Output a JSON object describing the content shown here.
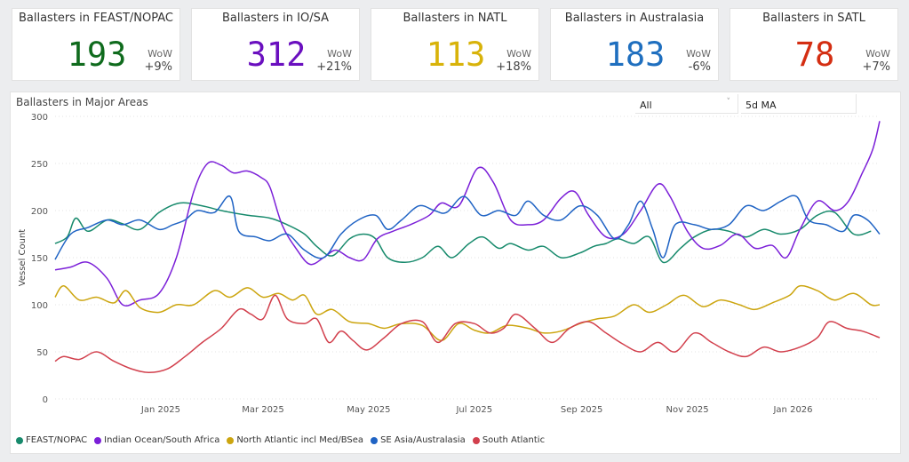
{
  "kpis": [
    {
      "title": "Ballasters in FEAST/NOPAC",
      "value": "193",
      "wow_label": "WoW",
      "wow": "+9%",
      "color": "#0f6b1d"
    },
    {
      "title": "Ballasters in IO/SA",
      "value": "312",
      "wow_label": "WoW",
      "wow": "+21%",
      "color": "#6a0fbf"
    },
    {
      "title": "Ballasters in NATL",
      "value": "113",
      "wow_label": "WoW",
      "wow": "+18%",
      "color": "#d8b30a"
    },
    {
      "title": "Ballasters in Australasia",
      "value": "183",
      "wow_label": "WoW",
      "wow": "-6%",
      "color": "#1f6fbf"
    },
    {
      "title": "Ballasters in SATL",
      "value": "78",
      "wow_label": "WoW",
      "wow": "+7%",
      "color": "#d42e12"
    }
  ],
  "filters": {
    "range": "All",
    "ma": "5d MA",
    "range_icon": "dropdown-icon",
    "ma_icon": "dropdown-icon"
  },
  "chart_data": {
    "type": "line",
    "title": "Ballasters in Major Areas",
    "xlabel": "",
    "ylabel": "Vessel Count",
    "ylim": [
      0,
      300
    ],
    "yticks": [
      0,
      50,
      100,
      150,
      200,
      250,
      300
    ],
    "x_range": [
      "2024-11-01",
      "2026-02-20"
    ],
    "x_ticks": [
      {
        "date": "2025-01-01",
        "label": "Jan 2025"
      },
      {
        "date": "2025-03-01",
        "label": "Mar 2025"
      },
      {
        "date": "2025-05-01",
        "label": "May 2025"
      },
      {
        "date": "2025-07-01",
        "label": "Jul 2025"
      },
      {
        "date": "2025-09-01",
        "label": "Sep 2025"
      },
      {
        "date": "2025-11-01",
        "label": "Nov 2025"
      },
      {
        "date": "2026-01-01",
        "label": "Jan 2026"
      }
    ],
    "grid": true,
    "legend_position": "bottom-left",
    "series": [
      {
        "name": "FEAST/NOPAC",
        "color": "#178a6c",
        "points": [
          [
            "2024-11-01",
            165
          ],
          [
            "2024-11-08",
            172
          ],
          [
            "2024-11-13",
            192
          ],
          [
            "2024-11-20",
            178
          ],
          [
            "2024-12-01",
            190
          ],
          [
            "2024-12-10",
            186
          ],
          [
            "2024-12-20",
            180
          ],
          [
            "2024-12-31",
            198
          ],
          [
            "2025-01-12",
            208
          ],
          [
            "2025-01-25",
            205
          ],
          [
            "2025-02-05",
            200
          ],
          [
            "2025-02-20",
            195
          ],
          [
            "2025-03-05",
            192
          ],
          [
            "2025-03-15",
            185
          ],
          [
            "2025-03-25",
            175
          ],
          [
            "2025-04-01",
            162
          ],
          [
            "2025-04-10",
            152
          ],
          [
            "2025-04-20",
            170
          ],
          [
            "2025-04-28",
            175
          ],
          [
            "2025-05-05",
            170
          ],
          [
            "2025-05-12",
            150
          ],
          [
            "2025-05-22",
            145
          ],
          [
            "2025-06-01",
            150
          ],
          [
            "2025-06-10",
            162
          ],
          [
            "2025-06-18",
            150
          ],
          [
            "2025-06-28",
            165
          ],
          [
            "2025-07-06",
            172
          ],
          [
            "2025-07-15",
            160
          ],
          [
            "2025-07-22",
            165
          ],
          [
            "2025-08-01",
            158
          ],
          [
            "2025-08-10",
            162
          ],
          [
            "2025-08-20",
            150
          ],
          [
            "2025-08-31",
            155
          ],
          [
            "2025-09-08",
            162
          ],
          [
            "2025-09-15",
            165
          ],
          [
            "2025-09-22",
            170
          ],
          [
            "2025-10-01",
            165
          ],
          [
            "2025-10-10",
            172
          ],
          [
            "2025-10-18",
            145
          ],
          [
            "2025-10-28",
            160
          ],
          [
            "2025-11-05",
            172
          ],
          [
            "2025-11-15",
            180
          ],
          [
            "2025-11-25",
            178
          ],
          [
            "2025-12-05",
            172
          ],
          [
            "2025-12-15",
            180
          ],
          [
            "2025-12-25",
            175
          ],
          [
            "2026-01-05",
            180
          ],
          [
            "2026-01-15",
            195
          ],
          [
            "2026-01-25",
            198
          ],
          [
            "2026-02-05",
            175
          ],
          [
            "2026-02-15",
            178
          ]
        ]
      },
      {
        "name": "Indian Ocean/South Africa",
        "color": "#7b1fd8",
        "points": [
          [
            "2024-11-01",
            137
          ],
          [
            "2024-11-10",
            140
          ],
          [
            "2024-11-20",
            145
          ],
          [
            "2024-12-01",
            128
          ],
          [
            "2024-12-10",
            100
          ],
          [
            "2024-12-20",
            105
          ],
          [
            "2024-12-31",
            112
          ],
          [
            "2025-01-10",
            150
          ],
          [
            "2025-01-20",
            220
          ],
          [
            "2025-01-28",
            250
          ],
          [
            "2025-02-05",
            248
          ],
          [
            "2025-02-12",
            240
          ],
          [
            "2025-02-20",
            242
          ],
          [
            "2025-02-28",
            235
          ],
          [
            "2025-03-05",
            225
          ],
          [
            "2025-03-12",
            185
          ],
          [
            "2025-03-20",
            160
          ],
          [
            "2025-03-28",
            143
          ],
          [
            "2025-04-05",
            150
          ],
          [
            "2025-04-12",
            158
          ],
          [
            "2025-04-20",
            150
          ],
          [
            "2025-04-28",
            148
          ],
          [
            "2025-05-06",
            170
          ],
          [
            "2025-05-15",
            178
          ],
          [
            "2025-05-25",
            185
          ],
          [
            "2025-06-05",
            195
          ],
          [
            "2025-06-12",
            208
          ],
          [
            "2025-06-22",
            205
          ],
          [
            "2025-07-03",
            245
          ],
          [
            "2025-07-12",
            230
          ],
          [
            "2025-07-22",
            190
          ],
          [
            "2025-08-01",
            185
          ],
          [
            "2025-08-10",
            190
          ],
          [
            "2025-08-20",
            213
          ],
          [
            "2025-08-28",
            220
          ],
          [
            "2025-09-05",
            195
          ],
          [
            "2025-09-15",
            172
          ],
          [
            "2025-09-25",
            175
          ],
          [
            "2025-10-05",
            200
          ],
          [
            "2025-10-15",
            228
          ],
          [
            "2025-10-22",
            215
          ],
          [
            "2025-11-01",
            178
          ],
          [
            "2025-11-10",
            160
          ],
          [
            "2025-11-20",
            163
          ],
          [
            "2025-11-30",
            175
          ],
          [
            "2025-12-10",
            160
          ],
          [
            "2025-12-20",
            163
          ],
          [
            "2025-12-28",
            150
          ],
          [
            "2026-01-05",
            180
          ],
          [
            "2026-01-15",
            210
          ],
          [
            "2026-01-25",
            200
          ],
          [
            "2026-02-02",
            210
          ],
          [
            "2026-02-10",
            240
          ],
          [
            "2026-02-16",
            265
          ],
          [
            "2026-02-20",
            295
          ]
        ]
      },
      {
        "name": "North Atlantic incl Med/BSea",
        "color": "#cca50f",
        "points": [
          [
            "2024-11-01",
            108
          ],
          [
            "2024-11-06",
            120
          ],
          [
            "2024-11-15",
            105
          ],
          [
            "2024-11-25",
            108
          ],
          [
            "2024-12-05",
            102
          ],
          [
            "2024-12-12",
            115
          ],
          [
            "2024-12-20",
            97
          ],
          [
            "2024-12-31",
            92
          ],
          [
            "2025-01-10",
            100
          ],
          [
            "2025-01-20",
            100
          ],
          [
            "2025-02-01",
            115
          ],
          [
            "2025-02-10",
            108
          ],
          [
            "2025-02-20",
            118
          ],
          [
            "2025-03-01",
            108
          ],
          [
            "2025-03-10",
            112
          ],
          [
            "2025-03-18",
            105
          ],
          [
            "2025-03-25",
            110
          ],
          [
            "2025-04-01",
            90
          ],
          [
            "2025-04-10",
            95
          ],
          [
            "2025-04-20",
            82
          ],
          [
            "2025-05-01",
            80
          ],
          [
            "2025-05-10",
            75
          ],
          [
            "2025-05-20",
            80
          ],
          [
            "2025-06-01",
            78
          ],
          [
            "2025-06-12",
            62
          ],
          [
            "2025-06-22",
            80
          ],
          [
            "2025-07-01",
            73
          ],
          [
            "2025-07-10",
            70
          ],
          [
            "2025-07-20",
            78
          ],
          [
            "2025-08-01",
            75
          ],
          [
            "2025-08-10",
            70
          ],
          [
            "2025-08-20",
            72
          ],
          [
            "2025-08-31",
            80
          ],
          [
            "2025-09-10",
            85
          ],
          [
            "2025-09-20",
            88
          ],
          [
            "2025-10-01",
            100
          ],
          [
            "2025-10-10",
            92
          ],
          [
            "2025-10-20",
            100
          ],
          [
            "2025-10-30",
            110
          ],
          [
            "2025-11-10",
            98
          ],
          [
            "2025-11-20",
            105
          ],
          [
            "2025-12-01",
            100
          ],
          [
            "2025-12-10",
            95
          ],
          [
            "2025-12-20",
            102
          ],
          [
            "2025-12-30",
            110
          ],
          [
            "2026-01-05",
            120
          ],
          [
            "2026-01-15",
            115
          ],
          [
            "2026-01-25",
            105
          ],
          [
            "2026-02-05",
            112
          ],
          [
            "2026-02-15",
            100
          ],
          [
            "2026-02-20",
            100
          ]
        ]
      },
      {
        "name": "SE Asia/Australasia",
        "color": "#1f63c4",
        "points": [
          [
            "2024-11-01",
            148
          ],
          [
            "2024-11-10",
            175
          ],
          [
            "2024-11-20",
            182
          ],
          [
            "2024-12-01",
            190
          ],
          [
            "2024-12-10",
            185
          ],
          [
            "2024-12-20",
            190
          ],
          [
            "2024-12-31",
            180
          ],
          [
            "2025-01-08",
            185
          ],
          [
            "2025-01-15",
            190
          ],
          [
            "2025-01-22",
            200
          ],
          [
            "2025-02-01",
            198
          ],
          [
            "2025-02-10",
            215
          ],
          [
            "2025-02-15",
            178
          ],
          [
            "2025-02-25",
            172
          ],
          [
            "2025-03-05",
            168
          ],
          [
            "2025-03-15",
            175
          ],
          [
            "2025-03-25",
            158
          ],
          [
            "2025-04-05",
            150
          ],
          [
            "2025-04-15",
            175
          ],
          [
            "2025-04-25",
            190
          ],
          [
            "2025-05-05",
            195
          ],
          [
            "2025-05-12",
            180
          ],
          [
            "2025-05-20",
            190
          ],
          [
            "2025-05-30",
            205
          ],
          [
            "2025-06-08",
            200
          ],
          [
            "2025-06-15",
            198
          ],
          [
            "2025-06-25",
            215
          ],
          [
            "2025-07-05",
            195
          ],
          [
            "2025-07-15",
            200
          ],
          [
            "2025-07-25",
            195
          ],
          [
            "2025-08-01",
            210
          ],
          [
            "2025-08-10",
            195
          ],
          [
            "2025-08-20",
            190
          ],
          [
            "2025-08-31",
            205
          ],
          [
            "2025-09-10",
            195
          ],
          [
            "2025-09-20",
            170
          ],
          [
            "2025-09-28",
            185
          ],
          [
            "2025-10-05",
            210
          ],
          [
            "2025-10-12",
            180
          ],
          [
            "2025-10-18",
            150
          ],
          [
            "2025-10-25",
            185
          ],
          [
            "2025-11-05",
            185
          ],
          [
            "2025-11-15",
            180
          ],
          [
            "2025-11-25",
            185
          ],
          [
            "2025-12-05",
            205
          ],
          [
            "2025-12-15",
            200
          ],
          [
            "2025-12-25",
            210
          ],
          [
            "2026-01-03",
            215
          ],
          [
            "2026-01-10",
            190
          ],
          [
            "2026-01-20",
            185
          ],
          [
            "2026-01-30",
            178
          ],
          [
            "2026-02-05",
            195
          ],
          [
            "2026-02-13",
            190
          ],
          [
            "2026-02-20",
            175
          ]
        ]
      },
      {
        "name": "South Atlantic",
        "color": "#d2404d",
        "points": [
          [
            "2024-11-01",
            40
          ],
          [
            "2024-11-06",
            45
          ],
          [
            "2024-11-15",
            42
          ],
          [
            "2024-11-25",
            50
          ],
          [
            "2024-12-05",
            40
          ],
          [
            "2024-12-15",
            32
          ],
          [
            "2024-12-25",
            28
          ],
          [
            "2025-01-05",
            32
          ],
          [
            "2025-01-15",
            45
          ],
          [
            "2025-01-25",
            60
          ],
          [
            "2025-02-05",
            75
          ],
          [
            "2025-02-15",
            95
          ],
          [
            "2025-02-22",
            90
          ],
          [
            "2025-03-01",
            85
          ],
          [
            "2025-03-08",
            110
          ],
          [
            "2025-03-15",
            85
          ],
          [
            "2025-03-25",
            80
          ],
          [
            "2025-04-01",
            85
          ],
          [
            "2025-04-08",
            60
          ],
          [
            "2025-04-15",
            72
          ],
          [
            "2025-04-22",
            62
          ],
          [
            "2025-04-30",
            52
          ],
          [
            "2025-05-10",
            65
          ],
          [
            "2025-05-20",
            80
          ],
          [
            "2025-06-01",
            82
          ],
          [
            "2025-06-10",
            60
          ],
          [
            "2025-06-20",
            80
          ],
          [
            "2025-07-01",
            80
          ],
          [
            "2025-07-10",
            70
          ],
          [
            "2025-07-18",
            75
          ],
          [
            "2025-07-25",
            90
          ],
          [
            "2025-08-05",
            75
          ],
          [
            "2025-08-15",
            60
          ],
          [
            "2025-08-25",
            75
          ],
          [
            "2025-09-05",
            82
          ],
          [
            "2025-09-15",
            70
          ],
          [
            "2025-09-25",
            58
          ],
          [
            "2025-10-05",
            50
          ],
          [
            "2025-10-15",
            60
          ],
          [
            "2025-10-25",
            50
          ],
          [
            "2025-11-05",
            70
          ],
          [
            "2025-11-15",
            60
          ],
          [
            "2025-11-25",
            50
          ],
          [
            "2025-12-05",
            45
          ],
          [
            "2025-12-15",
            55
          ],
          [
            "2025-12-25",
            50
          ],
          [
            "2026-01-05",
            55
          ],
          [
            "2026-01-15",
            65
          ],
          [
            "2026-01-22",
            82
          ],
          [
            "2026-02-01",
            75
          ],
          [
            "2026-02-10",
            72
          ],
          [
            "2026-02-20",
            65
          ]
        ]
      }
    ]
  }
}
